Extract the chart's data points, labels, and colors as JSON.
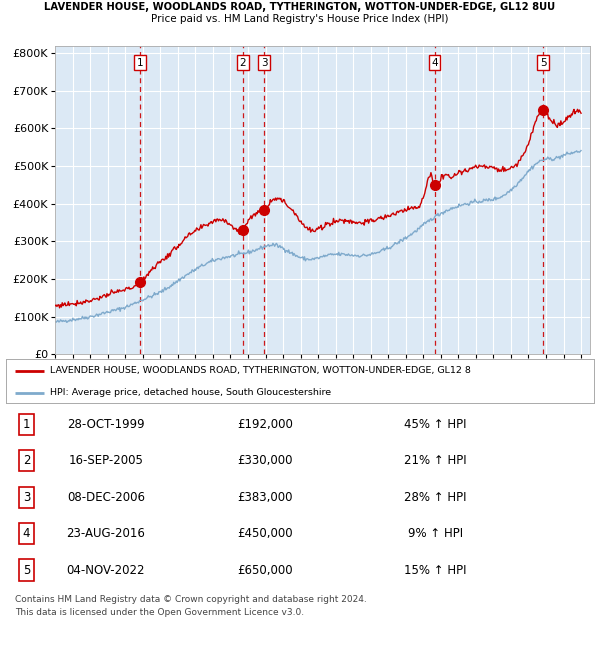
{
  "title_line1": "LAVENDER HOUSE, WOODLANDS ROAD, TYTHERINGTON, WOTTON-UNDER-EDGE, GL12 8UU",
  "title_line2": "Price paid vs. HM Land Registry's House Price Index (HPI)",
  "bg_color": "#dce9f5",
  "red_line_color": "#cc0000",
  "blue_line_color": "#7faacc",
  "sale_marker_color": "#cc0000",
  "dashed_line_color_red": "#cc0000",
  "sales": [
    {
      "label": "1",
      "date_x": 1999.83,
      "price": 192000,
      "date_str": "28-OCT-1999",
      "price_str": "£192,000",
      "hpi_str": "45% ↑ HPI"
    },
    {
      "label": "2",
      "date_x": 2005.71,
      "price": 330000,
      "date_str": "16-SEP-2005",
      "price_str": "£330,000",
      "hpi_str": "21% ↑ HPI"
    },
    {
      "label": "3",
      "date_x": 2006.93,
      "price": 383000,
      "date_str": "08-DEC-2006",
      "price_str": "£383,000",
      "hpi_str": "28% ↑ HPI"
    },
    {
      "label": "4",
      "date_x": 2016.64,
      "price": 450000,
      "date_str": "23-AUG-2016",
      "price_str": "£450,000",
      "hpi_str": "9% ↑ HPI"
    },
    {
      "label": "5",
      "date_x": 2022.84,
      "price": 650000,
      "date_str": "04-NOV-2022",
      "price_str": "£650,000",
      "hpi_str": "15% ↑ HPI"
    }
  ],
  "legend_red_label": "LAVENDER HOUSE, WOODLANDS ROAD, TYTHERINGTON, WOTTON-UNDER-EDGE, GL12 8",
  "legend_blue_label": "HPI: Average price, detached house, South Gloucestershire",
  "footer_line1": "Contains HM Land Registry data © Crown copyright and database right 2024.",
  "footer_line2": "This data is licensed under the Open Government Licence v3.0.",
  "ylim": [
    0,
    820000
  ],
  "yticks": [
    0,
    100000,
    200000,
    300000,
    400000,
    500000,
    600000,
    700000,
    800000
  ],
  "ytick_labels": [
    "£0",
    "£100K",
    "£200K",
    "£300K",
    "£400K",
    "£500K",
    "£600K",
    "£700K",
    "£800K"
  ],
  "xmin": 1995.0,
  "xmax": 2025.5
}
